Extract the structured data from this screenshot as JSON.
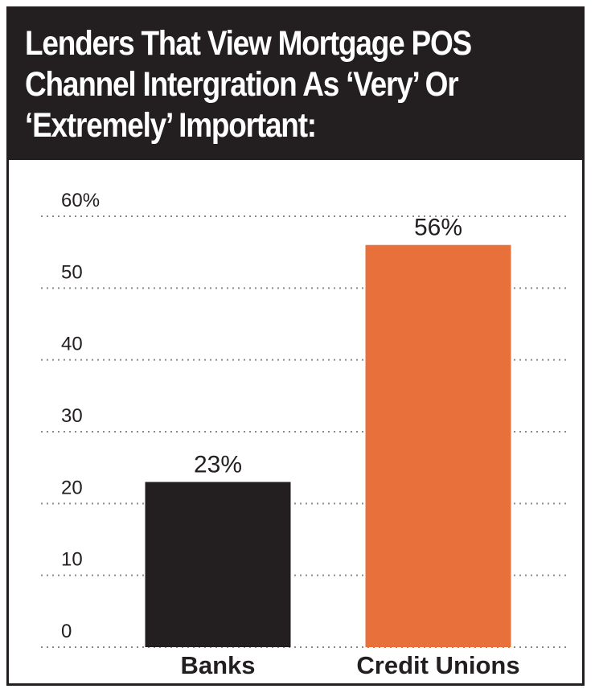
{
  "title": "Lenders That View Mortgage POS Channel Intergration As ‘Very’ Or ‘Extremely’ Important:",
  "chart_data": {
    "type": "bar",
    "categories": [
      "Banks",
      "Credit Unions"
    ],
    "values": [
      23,
      56
    ],
    "value_labels": [
      "23%",
      "56%"
    ],
    "colors": [
      "#231f20",
      "#e8703a"
    ],
    "ylim": [
      0,
      60
    ],
    "yticks": [
      0,
      10,
      20,
      30,
      40,
      50,
      60
    ],
    "ytick_labels": [
      "0",
      "10",
      "20",
      "30",
      "40",
      "50",
      "60%"
    ],
    "grid": true,
    "xlabel": "",
    "ylabel": ""
  }
}
